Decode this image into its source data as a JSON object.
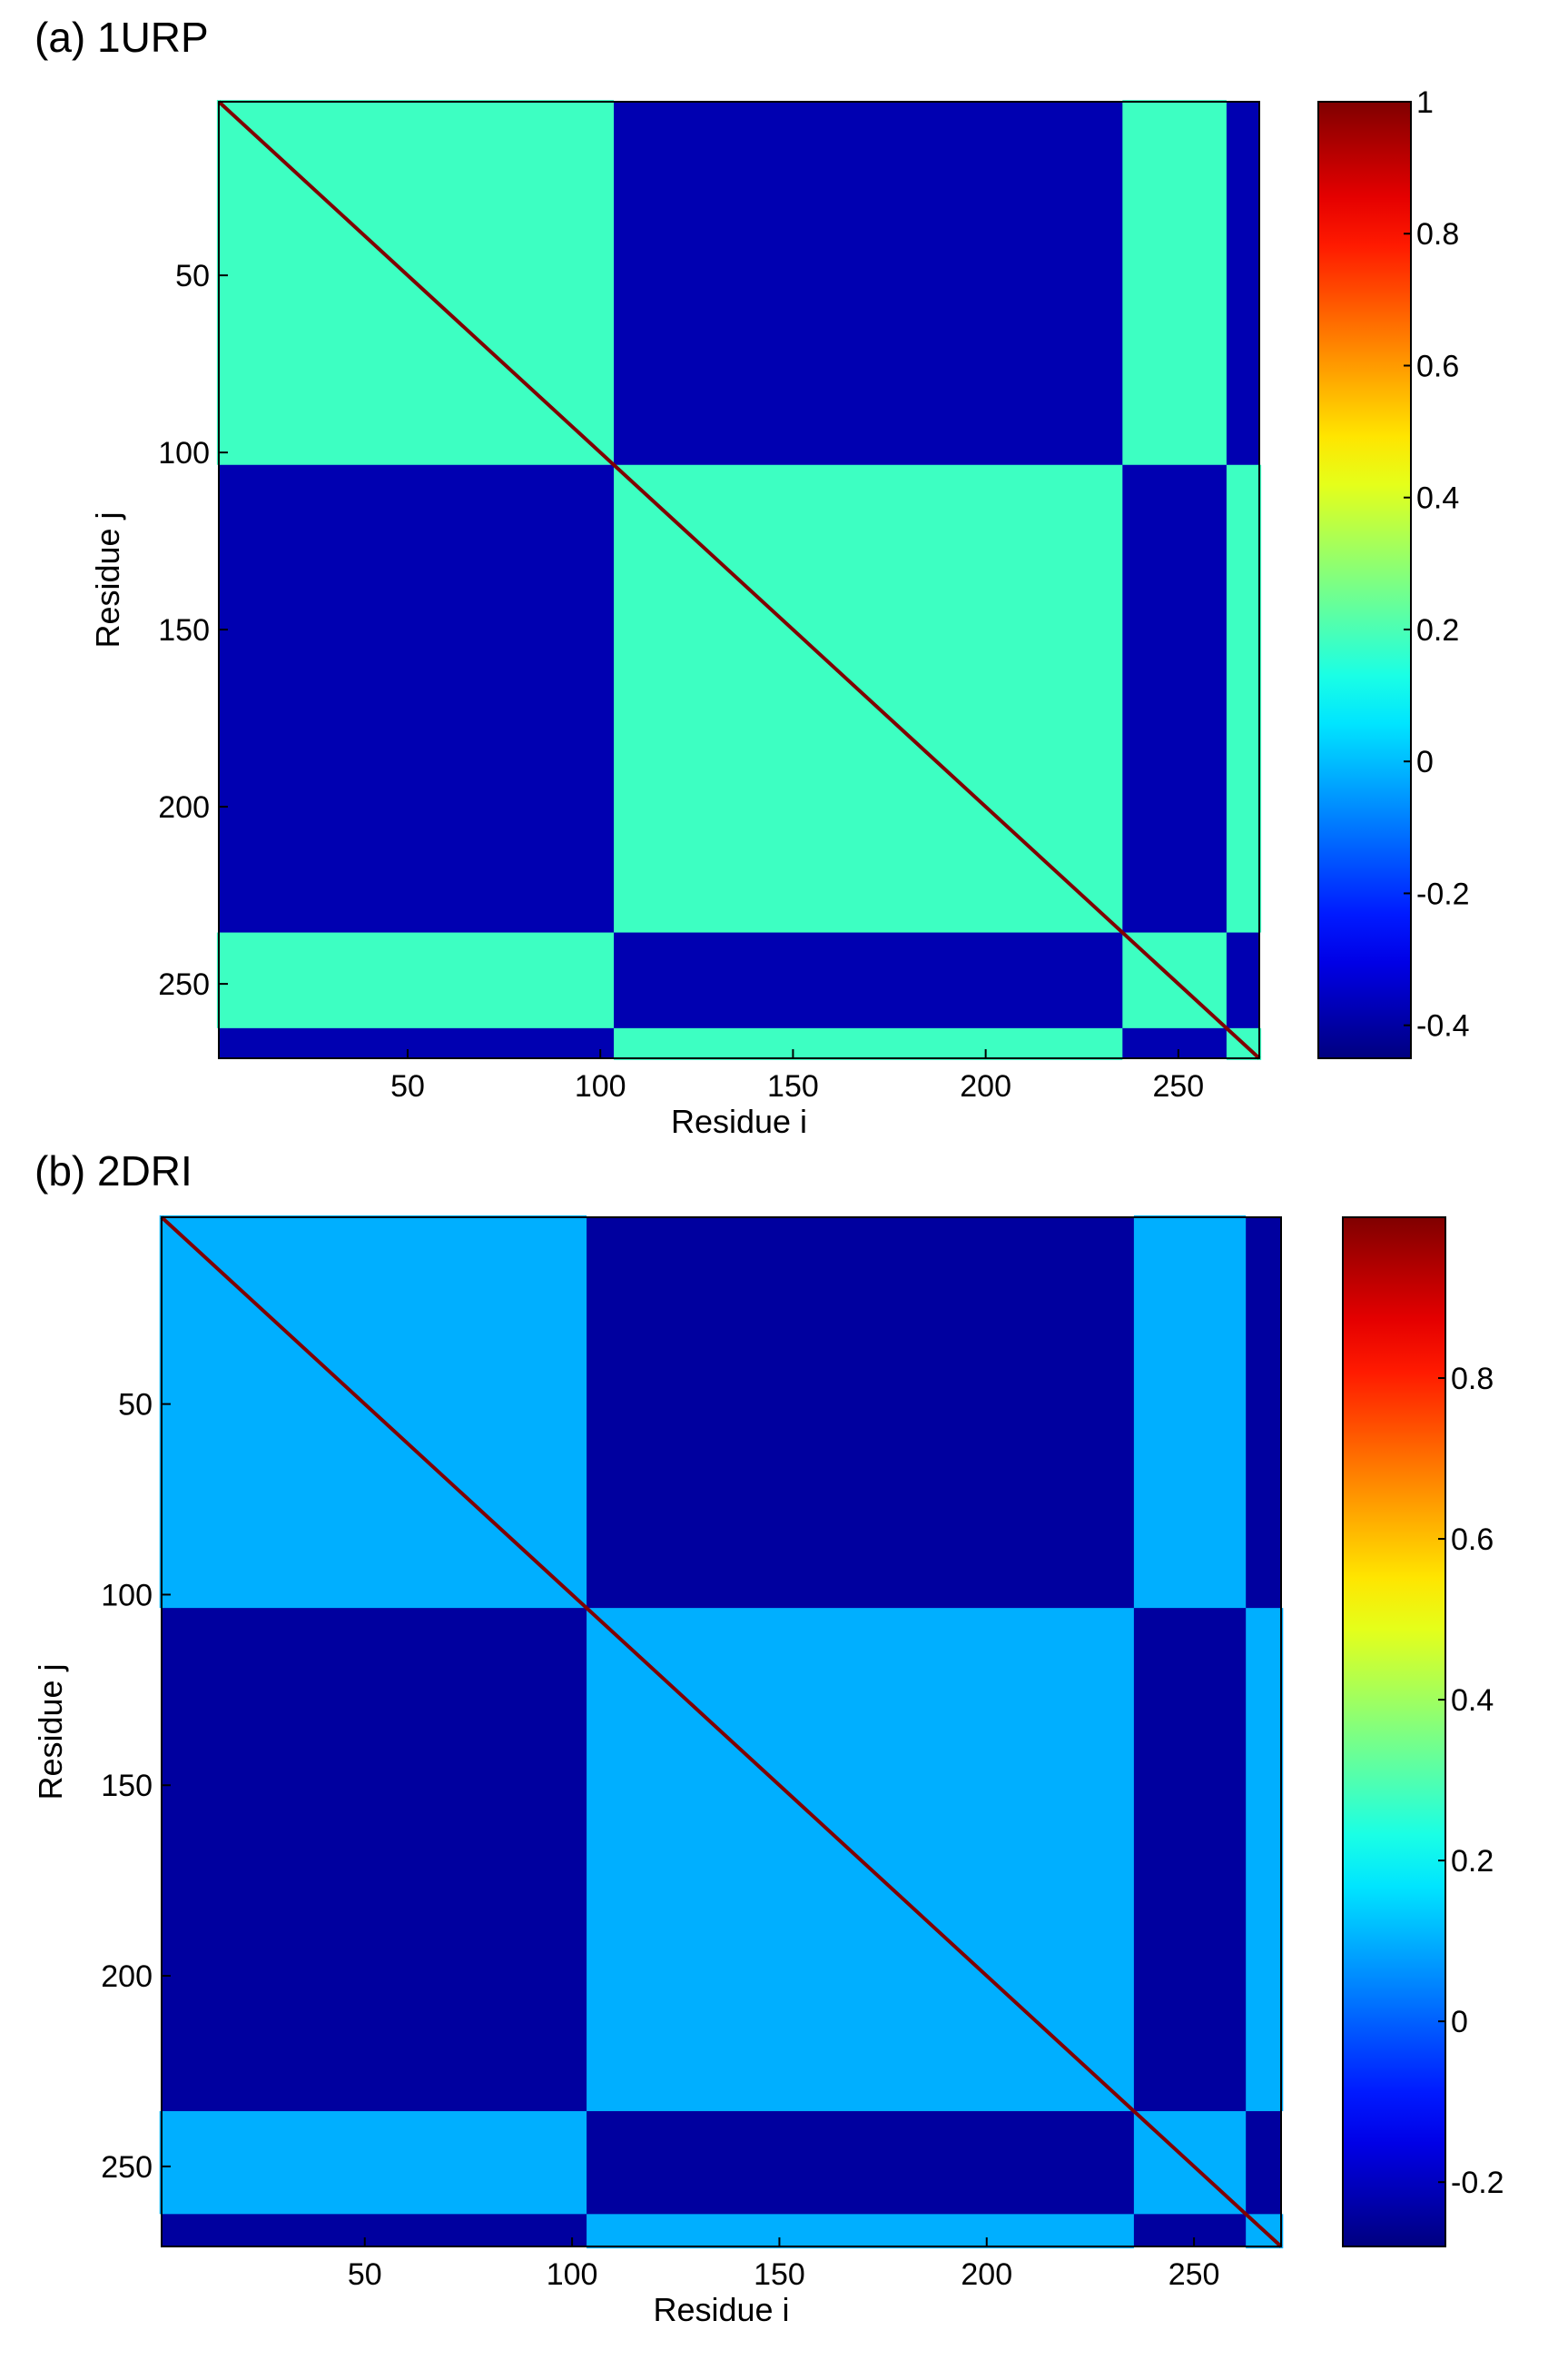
{
  "figure": {
    "panels": [
      {
        "label": "(a) 1URP",
        "xlabel": "Residue i",
        "ylabel": "Residue j"
      },
      {
        "label": "(b) 2DRI",
        "xlabel": "Residue i",
        "ylabel": "Residue j"
      }
    ]
  },
  "chart_data": [
    {
      "type": "heatmap",
      "title": "(a) 1URP",
      "xlabel": "Residue i",
      "ylabel": "Residue j",
      "xlim": [
        1,
        271
      ],
      "ylim": [
        1,
        271
      ],
      "x_ticks": [
        50,
        100,
        150,
        200,
        250
      ],
      "y_ticks": [
        50,
        100,
        150,
        200,
        250
      ],
      "colorbar": {
        "min": -0.45,
        "max": 1,
        "ticks": [
          1,
          0.8,
          0.6,
          0.4,
          0.2,
          0,
          -0.2,
          -0.4
        ],
        "tick_labels": [
          "1",
          "0.8",
          "0.6",
          "0.4",
          "0.2",
          "0",
          "-0.2",
          "-0.4"
        ],
        "colormap": "jet"
      },
      "domains": [
        [
          1,
          103
        ],
        [
          104,
          235
        ],
        [
          236,
          262
        ],
        [
          263,
          271
        ]
      ],
      "domain_pairs": [
        [
          1,
          3
        ],
        [
          2,
          4
        ]
      ],
      "within_domain_value": 0.18,
      "between_domain_value": -0.38,
      "diagonal_value": 1
    },
    {
      "type": "heatmap",
      "title": "(b) 2DRI",
      "xlabel": "Residue i",
      "ylabel": "Residue j",
      "xlim": [
        1,
        271
      ],
      "ylim": [
        1,
        271
      ],
      "x_ticks": [
        50,
        100,
        150,
        200,
        250
      ],
      "y_ticks": [
        50,
        100,
        150,
        200,
        250
      ],
      "colorbar": {
        "min": -0.28,
        "max": 1,
        "ticks": [
          0.8,
          0.6,
          0.4,
          0.2,
          0,
          -0.2
        ],
        "tick_labels": [
          "0.8",
          "0.6",
          "0.4",
          "0.2",
          "0",
          "-0.2"
        ],
        "colormap": "jet"
      },
      "domains": [
        [
          1,
          103
        ],
        [
          104,
          235
        ],
        [
          236,
          262
        ],
        [
          263,
          271
        ]
      ],
      "domain_pairs": [
        [
          1,
          3
        ],
        [
          2,
          4
        ]
      ],
      "within_domain_value": 0.1,
      "between_domain_value": -0.24,
      "diagonal_value": 1
    }
  ]
}
